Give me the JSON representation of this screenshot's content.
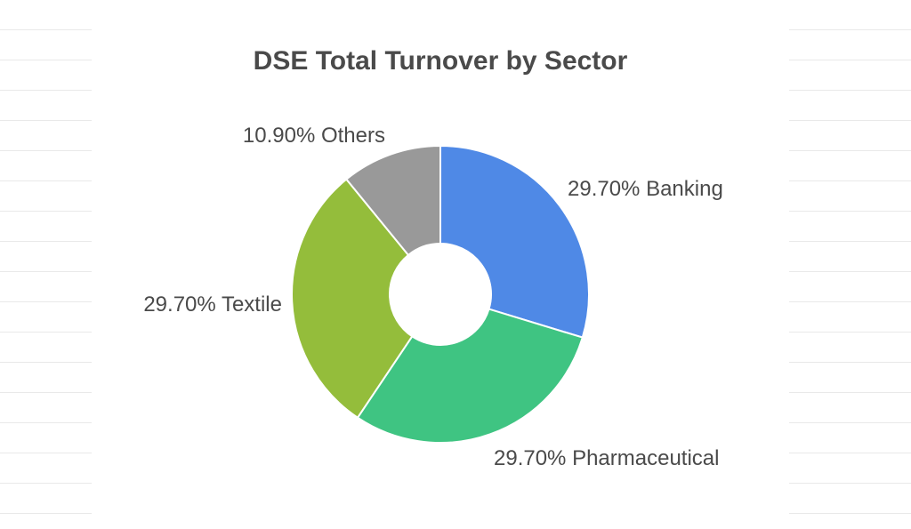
{
  "chart_data": {
    "type": "pie",
    "title": "DSE Total Turnover by Sector",
    "donut": true,
    "slices": [
      {
        "label": "Banking",
        "value": 29.7,
        "display": "29.70% Banking",
        "color": "#4f89e6"
      },
      {
        "label": "Pharmaceutical",
        "value": 29.7,
        "display": "29.70% Pharmaceutical",
        "color": "#3fc482"
      },
      {
        "label": "Textile",
        "value": 29.7,
        "display": "29.70% Textile",
        "color": "#94bd3b"
      },
      {
        "label": "Others",
        "value": 10.9,
        "display": "10.90% Others",
        "color": "#999999"
      }
    ]
  }
}
